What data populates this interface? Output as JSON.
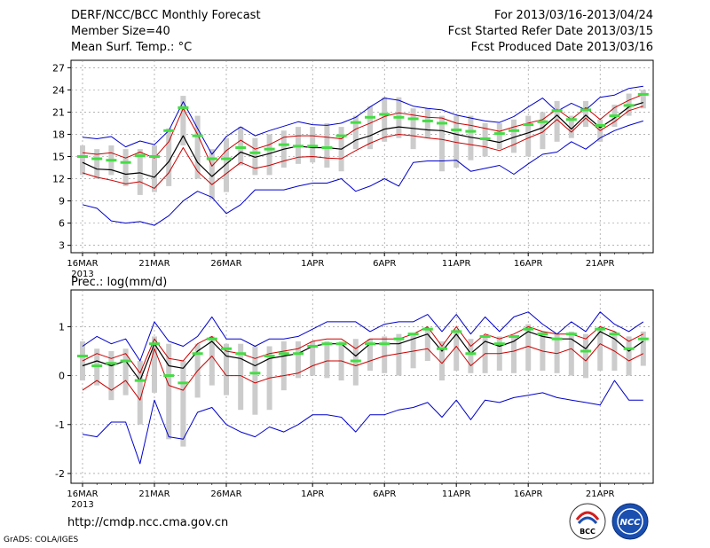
{
  "header": {
    "title": "DERF/NCC/BCC Monthly Forecast",
    "member_size": "Member Size=40",
    "variable1": "Mean Surf. Temp.: °C",
    "period": "For 2013/03/16-2013/04/24",
    "started": "Fcst Started Refer Date 2013/03/15",
    "produced": "Fcst Produced Date 2013/03/16"
  },
  "footer": {
    "url": "http://cmdp.ncc.cma.gov.cn",
    "credit": "GrADS: COLA/IGES",
    "logo_left": "BCC",
    "logo_right": "NCC"
  },
  "colors": {
    "bars": "#cccccc",
    "mean": "#000000",
    "spread": "#cc0000",
    "extreme": "#0000cc",
    "median": "#44dd44",
    "grid": "#888888"
  },
  "chart_data": [
    {
      "type": "line",
      "title": "Mean Surf. Temp.: °C",
      "x_ticks": [
        "16MAR",
        "21MAR",
        "26MAR",
        "1APR",
        "6APR",
        "11APR",
        "16APR",
        "21APR"
      ],
      "x_tick_days": [
        0,
        5,
        10,
        16,
        21,
        26,
        31,
        36
      ],
      "x_year_label": "2013",
      "y_ticks": [
        3,
        6,
        9,
        12,
        15,
        18,
        21,
        24,
        27
      ],
      "ylim": [
        2,
        28
      ],
      "days": 40,
      "series": [
        {
          "name": "max",
          "values": [
            8.5,
            8,
            6.3,
            6,
            6.2,
            5.7,
            7,
            9,
            10.3,
            9.5,
            7.3,
            8.5,
            10.5,
            10.5,
            10.5,
            11,
            11.4,
            11.4,
            12,
            10.3,
            11,
            12,
            11,
            14.2,
            14.4,
            14.4,
            14.5,
            13,
            13.4,
            13.8,
            12.6,
            14,
            15.3,
            15.6,
            17,
            16,
            17.5,
            18.5,
            19.2,
            19.8
          ]
        },
        {
          "name": "q75",
          "values": [
            15.5,
            15.3,
            15.5,
            14.8,
            15.6,
            14.8,
            17,
            21.5,
            18,
            13.7,
            15.8,
            17.2,
            16,
            16.6,
            17.6,
            17.8,
            17.8,
            17.6,
            17.4,
            18.7,
            19.5,
            20.4,
            20.9,
            20.6,
            20.3,
            20.2,
            19.5,
            19.2,
            18.8,
            18.4,
            19,
            19.5,
            20,
            21.4,
            20,
            21.6,
            20,
            21.6,
            22.6,
            23.4
          ]
        },
        {
          "name": "mean",
          "values": [
            14.2,
            13.3,
            13.2,
            12.6,
            12.8,
            12.2,
            14.3,
            17.8,
            14.2,
            12.3,
            14,
            15.6,
            14.9,
            15.4,
            16,
            16.4,
            16.2,
            16.2,
            16,
            17.2,
            17.8,
            18.7,
            19,
            18.8,
            18.6,
            18.5,
            18,
            17.6,
            17.3,
            16.9,
            17.6,
            18.2,
            18.9,
            20.6,
            18.7,
            20.6,
            18.9,
            20.2,
            21.7,
            22.3
          ]
        },
        {
          "name": "q25",
          "values": [
            12.8,
            12.2,
            11.8,
            11.3,
            11.6,
            10.7,
            12.8,
            16.2,
            13,
            11.2,
            12.7,
            14.2,
            13.4,
            13.8,
            14.4,
            14.9,
            15,
            14.8,
            14.7,
            15.8,
            16.8,
            17.6,
            18,
            17.8,
            17.5,
            17.3,
            16.9,
            16.6,
            16.3,
            15.8,
            16.6,
            17.5,
            18.3,
            20,
            18.3,
            20.2,
            18.5,
            19.7,
            21.2,
            21.8
          ]
        },
        {
          "name": "min_env",
          "values": [
            17.6,
            17.4,
            17.7,
            16.3,
            17.1,
            16.6,
            18.5,
            22.4,
            18.8,
            15.3,
            17.7,
            19,
            17.8,
            18.5,
            19.1,
            19.7,
            19.3,
            19.2,
            19.5,
            20.3,
            21.7,
            22.9,
            22.6,
            21.8,
            21.5,
            21.3,
            20.6,
            20.2,
            19.8,
            19.6,
            20.4,
            21.7,
            22.9,
            21.1,
            22.2,
            21.3,
            23,
            23.3,
            24.2,
            24.5
          ]
        },
        {
          "name": "median",
          "values": [
            15,
            14.7,
            14.5,
            14.2,
            15.1,
            15,
            18.5,
            21.6,
            17.8,
            14.7,
            14.7,
            16.2,
            15.5,
            16,
            16.6,
            16.4,
            16.4,
            16.2,
            17.8,
            19.6,
            20.3,
            20.7,
            20.3,
            20.1,
            19.8,
            19.5,
            18.6,
            18.4,
            17.4,
            18.1,
            18.5,
            19.3,
            19.7,
            21.2,
            20,
            21.3,
            19.2,
            20.5,
            21.9,
            23.4
          ]
        },
        {
          "name": "bar_low",
          "values": [
            12.5,
            12,
            12.5,
            11,
            9.8,
            10.2,
            11,
            16.5,
            12,
            9.2,
            10.2,
            13.8,
            12.5,
            12.5,
            13.5,
            14,
            14.2,
            13.5,
            13,
            16,
            16,
            17,
            17.5,
            16,
            17.5,
            13,
            13.5,
            14.5,
            15,
            16,
            15.5,
            15,
            16,
            17,
            17.5,
            19,
            17,
            19,
            20.5,
            21.5
          ]
        },
        {
          "name": "bar_high",
          "values": [
            16.5,
            16,
            16.5,
            16,
            16,
            16.5,
            18.8,
            23.2,
            20.5,
            16,
            17.5,
            19,
            17.5,
            18,
            18.5,
            19,
            19,
            19.5,
            19,
            20.5,
            21.8,
            23,
            23,
            21.5,
            21.5,
            20.5,
            20.5,
            20.5,
            19.5,
            19.5,
            20,
            20.5,
            21,
            22.5,
            20.5,
            22.5,
            20,
            22,
            23.5,
            24
          ]
        }
      ],
      "ylabel": "",
      "xlabel": ""
    },
    {
      "type": "line",
      "title": "Prec.: log(mm/d)",
      "x_ticks": [
        "16MAR",
        "21MAR",
        "26MAR",
        "1APR",
        "6APR",
        "11APR",
        "16APR",
        "21APR"
      ],
      "x_tick_days": [
        0,
        5,
        10,
        16,
        21,
        26,
        31,
        36
      ],
      "x_year_label": "2013",
      "y_ticks": [
        -2,
        -1,
        0,
        1
      ],
      "ylim": [
        -2.2,
        1.75
      ],
      "days": 40,
      "series": [
        {
          "name": "max_env",
          "values": [
            0.6,
            0.8,
            0.65,
            0.75,
            0.3,
            1.1,
            0.7,
            0.6,
            0.8,
            1.2,
            0.75,
            0.75,
            0.6,
            0.75,
            0.75,
            0.8,
            0.95,
            1.1,
            1.1,
            1.1,
            0.9,
            1.05,
            1.1,
            1.1,
            1.25,
            0.9,
            1.25,
            0.85,
            1.2,
            0.9,
            1.2,
            1.3,
            1.05,
            0.85,
            1.1,
            0.9,
            1.3,
            1.05,
            0.9,
            1.1
          ]
        },
        {
          "name": "q75",
          "values": [
            0.3,
            0.45,
            0.35,
            0.45,
            0.05,
            0.75,
            0.35,
            0.3,
            0.65,
            0.8,
            0.5,
            0.45,
            0.35,
            0.45,
            0.5,
            0.55,
            0.7,
            0.75,
            0.75,
            0.55,
            0.75,
            0.75,
            0.75,
            0.85,
            1.0,
            0.6,
            1.0,
            0.6,
            0.85,
            0.75,
            0.85,
            1.0,
            0.9,
            0.85,
            0.85,
            0.75,
            1.0,
            0.9,
            0.7,
            0.85
          ]
        },
        {
          "name": "mean",
          "values": [
            0.2,
            0.3,
            0.2,
            0.3,
            -0.1,
            0.65,
            0.2,
            0.15,
            0.5,
            0.7,
            0.4,
            0.35,
            0.2,
            0.35,
            0.4,
            0.45,
            0.6,
            0.65,
            0.65,
            0.4,
            0.65,
            0.65,
            0.65,
            0.75,
            0.85,
            0.5,
            0.85,
            0.45,
            0.7,
            0.6,
            0.7,
            0.9,
            0.8,
            0.75,
            0.75,
            0.55,
            0.9,
            0.75,
            0.5,
            0.7
          ]
        },
        {
          "name": "q25",
          "values": [
            -0.3,
            -0.1,
            -0.3,
            -0.1,
            -0.5,
            0.55,
            -0.2,
            -0.3,
            0.1,
            0.4,
            0.0,
            0.0,
            -0.15,
            -0.05,
            0.0,
            0.05,
            0.2,
            0.3,
            0.3,
            0.2,
            0.3,
            0.4,
            0.45,
            0.5,
            0.55,
            0.25,
            0.6,
            0.2,
            0.45,
            0.45,
            0.5,
            0.6,
            0.5,
            0.45,
            0.55,
            0.3,
            0.65,
            0.5,
            0.3,
            0.45
          ]
        },
        {
          "name": "min_env",
          "values": [
            -1.2,
            -1.25,
            -0.95,
            -0.95,
            -1.8,
            -0.5,
            -1.25,
            -1.3,
            -0.75,
            -0.65,
            -1.0,
            -1.15,
            -1.25,
            -1.05,
            -1.15,
            -1.0,
            -0.8,
            -0.8,
            -0.85,
            -1.15,
            -0.8,
            -0.8,
            -0.7,
            -0.65,
            -0.55,
            -0.85,
            -0.5,
            -0.9,
            -0.5,
            -0.55,
            -0.45,
            -0.4,
            -0.35,
            -0.45,
            -0.5,
            -0.55,
            -0.6,
            -0.1,
            -0.5,
            -0.5
          ]
        },
        {
          "name": "median",
          "values": [
            0.4,
            0.2,
            0.25,
            0.3,
            -0.1,
            0.65,
            0.0,
            -0.15,
            0.45,
            0.75,
            0.55,
            0.45,
            0.05,
            0.4,
            0.45,
            0.45,
            0.6,
            0.65,
            0.65,
            0.3,
            0.65,
            0.65,
            0.75,
            0.85,
            0.95,
            0.55,
            0.9,
            0.45,
            0.8,
            0.65,
            0.8,
            0.95,
            0.85,
            0.75,
            0.85,
            0.5,
            0.95,
            0.85,
            0.55,
            0.75
          ]
        },
        {
          "name": "bar_low",
          "values": [
            -0.1,
            -0.2,
            -0.5,
            -0.4,
            -1.0,
            -0.35,
            -1.3,
            -1.45,
            -0.45,
            -0.2,
            -0.4,
            -0.7,
            -0.8,
            -0.7,
            -0.3,
            -0.05,
            0.0,
            -0.05,
            -0.1,
            -0.2,
            0.1,
            0.05,
            0.0,
            0.15,
            0.3,
            -0.1,
            0.1,
            0.05,
            0.05,
            0.1,
            0.05,
            0.1,
            0.1,
            0.05,
            0.0,
            -0.05,
            0.1,
            0.1,
            0.0,
            0.2
          ]
        },
        {
          "name": "bar_high",
          "values": [
            0.7,
            0.55,
            0.5,
            0.55,
            0.3,
            0.8,
            0.65,
            0.3,
            0.65,
            0.8,
            0.65,
            0.65,
            0.6,
            0.6,
            0.7,
            0.7,
            0.7,
            0.7,
            0.7,
            0.75,
            0.75,
            0.8,
            0.85,
            0.85,
            0.95,
            0.7,
            0.95,
            0.75,
            0.8,
            0.8,
            0.8,
            1.05,
            0.9,
            0.85,
            0.9,
            0.85,
            1.0,
            0.9,
            0.8,
            0.9
          ]
        }
      ],
      "ylabel": "",
      "xlabel": ""
    }
  ]
}
